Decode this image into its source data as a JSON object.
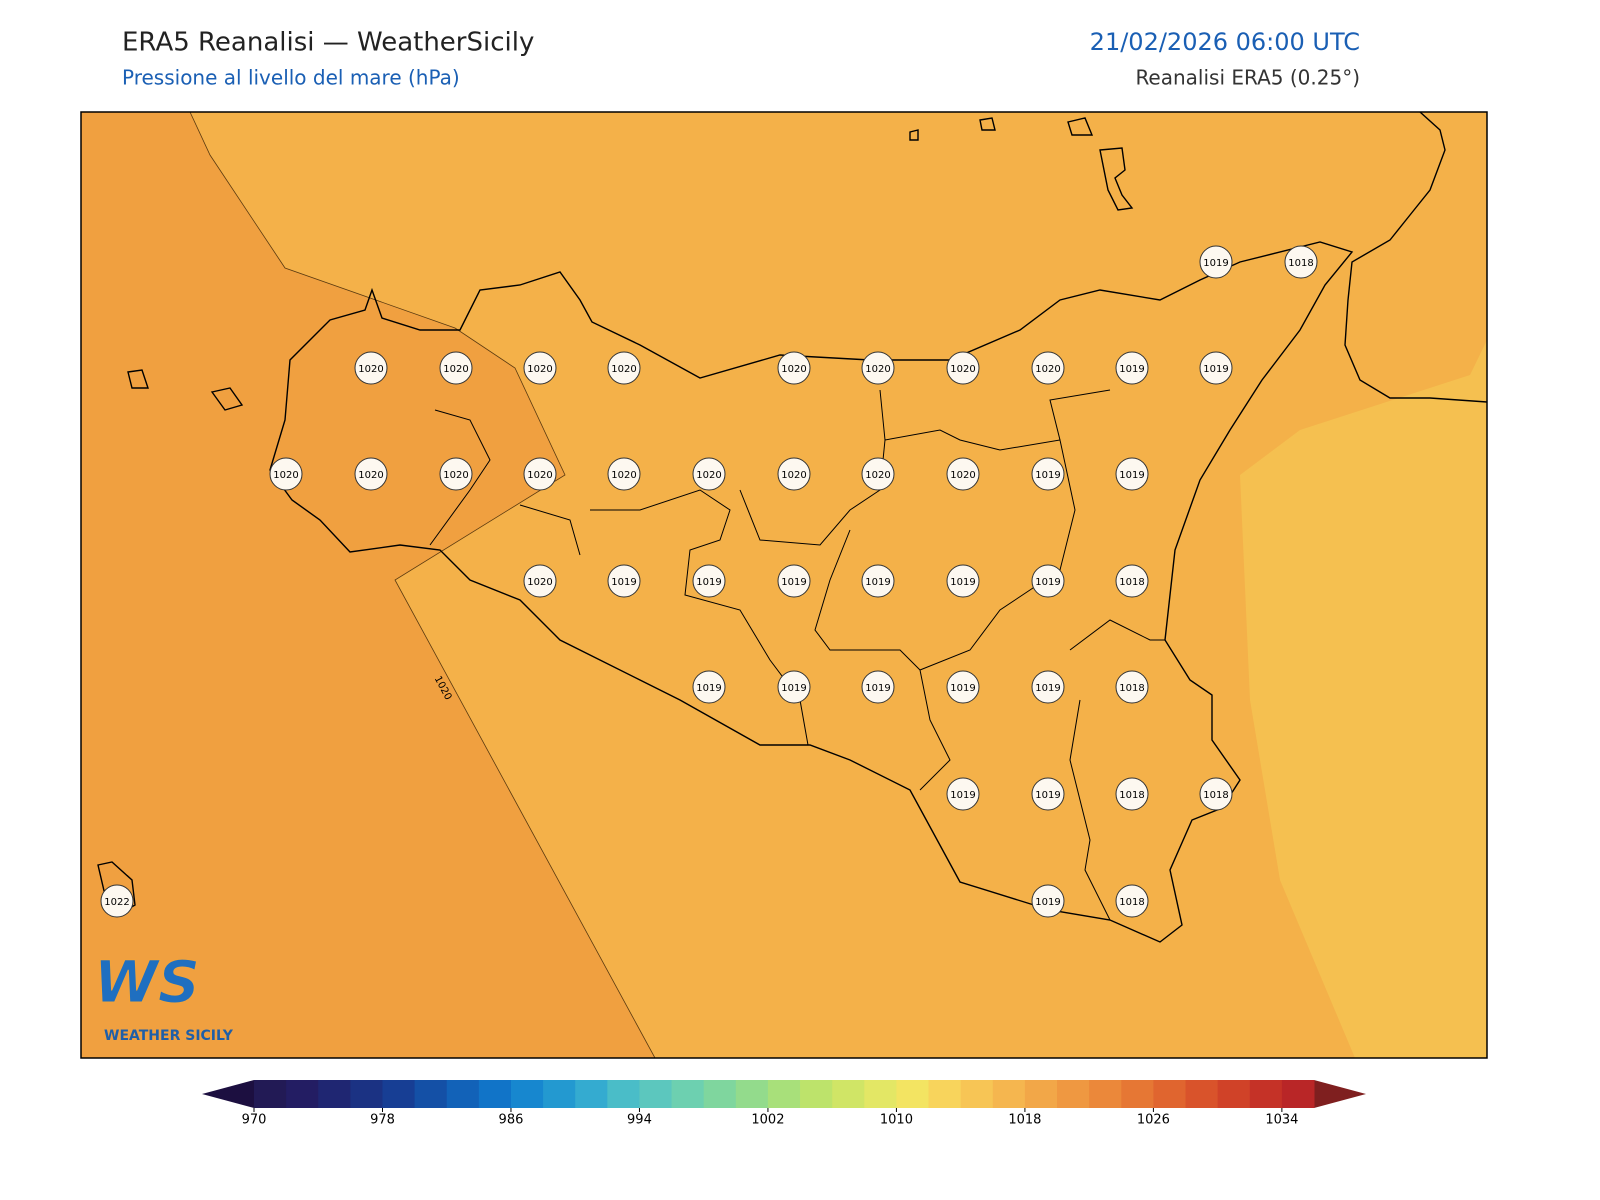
{
  "header": {
    "title": "ERA5 Reanalisi — WeatherSicily",
    "subtitle": "Pressione al livello del mare (hPa)",
    "datetime": "21/02/2026 06:00 UTC",
    "source": "Reanalisi ERA5 (0.25°)"
  },
  "map": {
    "contour_label": 1020,
    "stations": [
      1019,
      1018,
      1020,
      1020,
      1020,
      1020,
      1020,
      1020,
      1020,
      1020,
      1019,
      1019,
      1020,
      1020,
      1020,
      1020,
      1020,
      1020,
      1020,
      1020,
      1020,
      1019,
      1019,
      1020,
      1019,
      1019,
      1019,
      1019,
      1019,
      1019,
      1018,
      1019,
      1019,
      1019,
      1019,
      1019,
      1018,
      1019,
      1019,
      1018,
      1018,
      1022,
      1019,
      1018
    ]
  },
  "logo": {
    "mark": "WS",
    "text": "WEATHER SICILY"
  },
  "colorbar": {
    "lim": [
      970,
      1036
    ],
    "ticks": [
      970,
      978,
      986,
      994,
      1002,
      1010,
      1018,
      1026,
      1034
    ],
    "colors": [
      "#221a55",
      "#231d63",
      "#1f2672",
      "#1b3283",
      "#173e94",
      "#1450a6",
      "#1262b8",
      "#1174c8",
      "#1787cf",
      "#2399d0",
      "#34abd0",
      "#4abdc8",
      "#5cc7be",
      "#6dd0b0",
      "#7fd69e",
      "#93db8c",
      "#a8e07a",
      "#bde36b",
      "#d0e566",
      "#e3e765",
      "#f3e462",
      "#f8d45c",
      "#f7c555",
      "#f5b64f",
      "#f2a748",
      "#ef9841",
      "#eb883a",
      "#e67734",
      "#e0652f",
      "#d9532b",
      "#d04228",
      "#c53227",
      "#b92627"
    ],
    "under_color": "#1c0f40",
    "over_color": "#7f1f1f"
  }
}
